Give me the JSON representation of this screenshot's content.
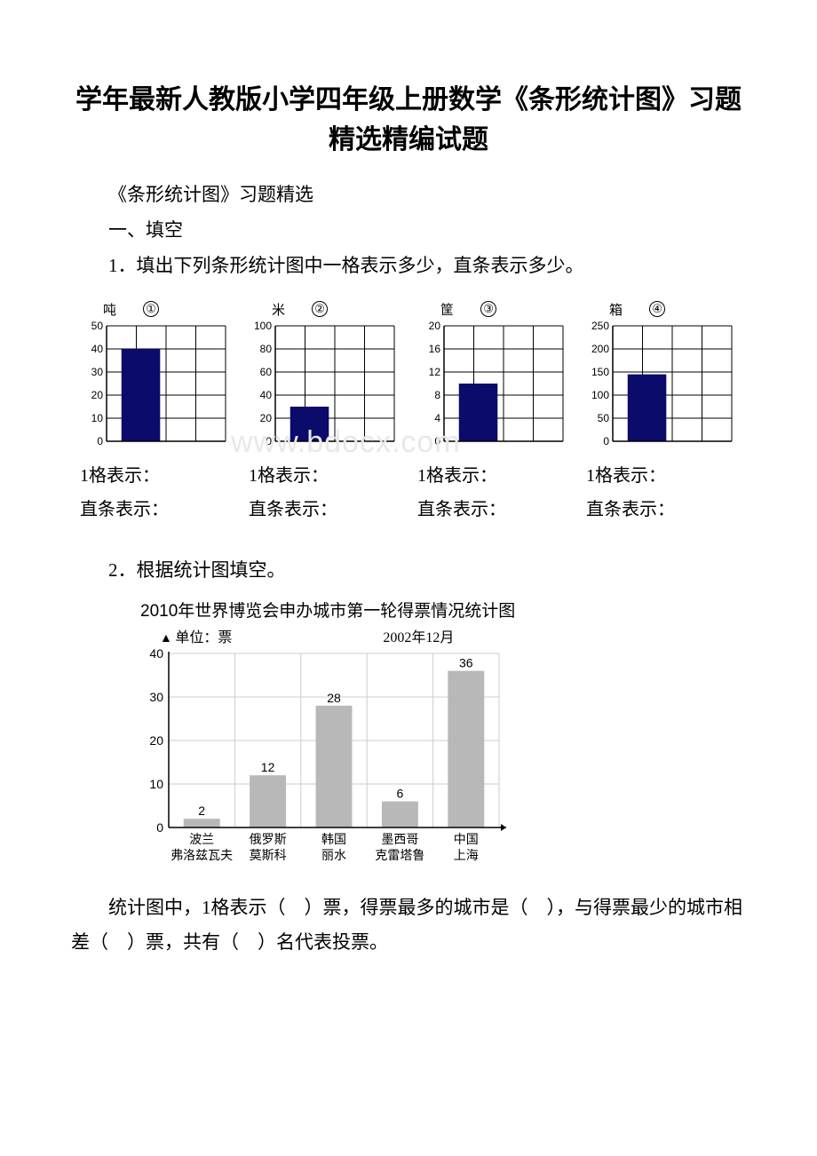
{
  "title": "学年最新人教版小学四年级上册数学《条形统计图》习题精选精编试题",
  "subtitle": "《条形统计图》习题精选",
  "section1": "一、填空",
  "q1": "1．填出下列条形统计图中一格表示多少，直条表示多少。",
  "fill_cell_label": "1格表示：",
  "fill_bar_label": "直条表示：",
  "q2": "2．根据统计图填空。",
  "q2_text": "统计图中，1格表示（　）票，得票最多的城市是（　），与得票最少的城市相差（　）票，共有（　）名代表投票。",
  "watermark_text": "www.bdocx.com",
  "mini_charts": [
    {
      "unit": "吨",
      "badge": "①",
      "ymax": 50,
      "step": 10,
      "bar_value": 40,
      "bar_color": "#0b0b6b",
      "grid_cols": 4
    },
    {
      "unit": "米",
      "badge": "②",
      "ymax": 100,
      "step": 20,
      "bar_value": 30,
      "bar_color": "#0b0b6b",
      "grid_cols": 4
    },
    {
      "unit": "筐",
      "badge": "③",
      "ymax": 20,
      "step": 4,
      "bar_value": 10,
      "bar_color": "#0b0b6b",
      "grid_cols": 4
    },
    {
      "unit": "箱",
      "badge": "④",
      "ymax": 250,
      "step": 50,
      "bar_value": 145,
      "bar_color": "#0b0b6b",
      "grid_cols": 4
    }
  ],
  "chart2": {
    "title": "2010年世界博览会申办城市第一轮得票情况统计图",
    "unit_label": "单位：票",
    "date_label": "2002年12月",
    "ymax": 40,
    "ystep": 10,
    "bar_color": "#b8b8b8",
    "grid_color": "#cccccc",
    "bars": [
      {
        "value": 2,
        "line1": "波兰",
        "line2": "弗洛兹瓦夫"
      },
      {
        "value": 12,
        "line1": "俄罗斯",
        "line2": "莫斯科"
      },
      {
        "value": 28,
        "line1": "韩国",
        "line2": "丽水"
      },
      {
        "value": 6,
        "line1": "墨西哥",
        "line2": "克雷塔鲁"
      },
      {
        "value": 36,
        "line1": "中国",
        "line2": "上海"
      }
    ]
  }
}
